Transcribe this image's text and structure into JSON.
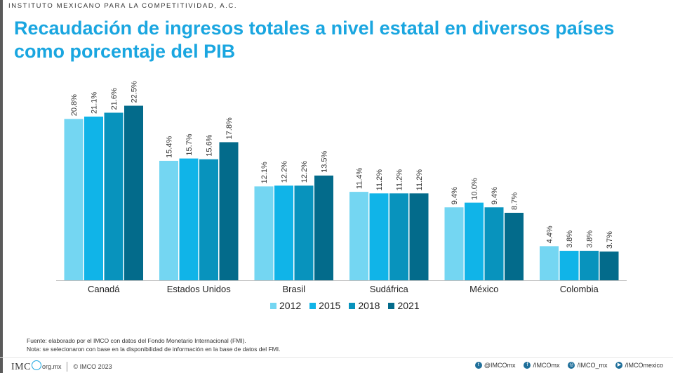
{
  "header": {
    "org": "INSTITUTO MEXICANO PARA LA COMPETITIVIDAD, A.C.",
    "title": "Recaudación de ingresos totales a nivel estatal en diversos países como porcentaje del PIB"
  },
  "chart_data": {
    "type": "bar",
    "categories": [
      "Canadá",
      "Estados Unidos",
      "Brasil",
      "Sudáfrica",
      "México",
      "Colombia"
    ],
    "series": [
      {
        "name": "2012",
        "color": "#74d6f2",
        "values": [
          20.8,
          15.4,
          12.1,
          11.4,
          9.4,
          4.4
        ],
        "labels": [
          "20.8%",
          "15.4%",
          "12.1%",
          "11.4%",
          "9.4%",
          "4.4%"
        ]
      },
      {
        "name": "2015",
        "color": "#10b4e8",
        "values": [
          21.1,
          15.7,
          12.2,
          11.2,
          10.0,
          3.8
        ],
        "labels": [
          "21.1%",
          "15.7%",
          "12.2%",
          "11.2%",
          "10.0%",
          "3.8%"
        ]
      },
      {
        "name": "2018",
        "color": "#0893bd",
        "values": [
          21.6,
          15.6,
          12.2,
          11.2,
          9.4,
          3.8
        ],
        "labels": [
          "21.6%",
          "15.6%",
          "12.2%",
          "11.2%",
          "9.4%",
          "3.8%"
        ]
      },
      {
        "name": "2021",
        "color": "#036b8b",
        "values": [
          22.5,
          17.8,
          13.5,
          11.2,
          8.7,
          3.7
        ],
        "labels": [
          "22.5%",
          "17.8%",
          "13.5%",
          "11.2%",
          "8.7%",
          "3.7%"
        ]
      }
    ],
    "ylim": [
      0,
      23
    ],
    "grid": false,
    "legend_position": "bottom"
  },
  "notes": {
    "source": "Fuente: elaborado por el IMCO con datos del Fondo Monetario Internacional (FMI).",
    "note": "Nota: se selecionaron con base en la disponibilidad de información en la base de datos del FMI."
  },
  "footer": {
    "logo_text": "IMC",
    "domain": "org.mx",
    "copyright": "© IMCO 2023",
    "social": [
      {
        "icon": "twitter-icon",
        "glyph": "t",
        "label": "@IMCOmx"
      },
      {
        "icon": "facebook-icon",
        "glyph": "f",
        "label": "/IMCOmx"
      },
      {
        "icon": "instagram-icon",
        "glyph": "◎",
        "label": "/IMCO_mx"
      },
      {
        "icon": "youtube-icon",
        "glyph": "▶",
        "label": "/IMCOmexico"
      }
    ]
  }
}
